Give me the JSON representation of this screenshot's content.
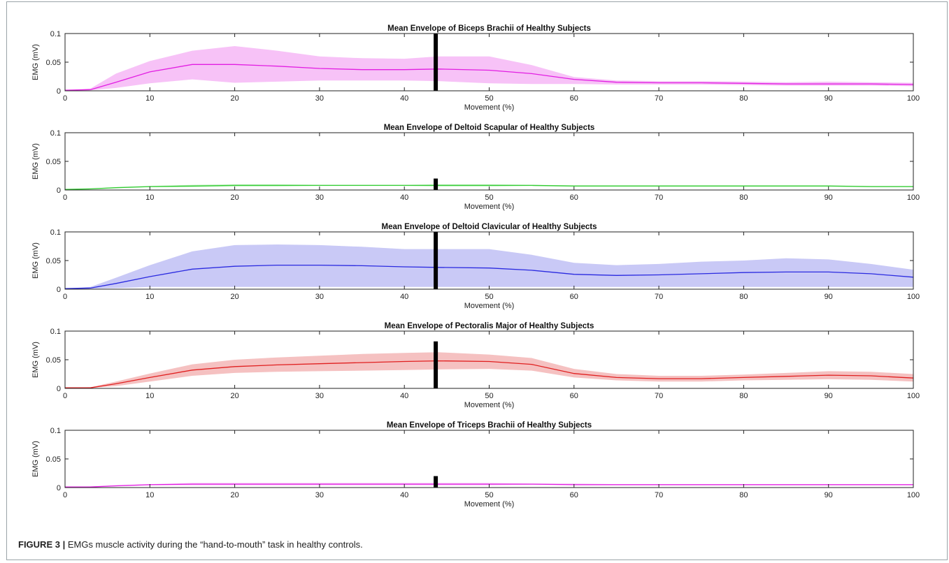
{
  "caption": {
    "label": "FIGURE 3 |",
    "text": "EMGs muscle activity during the “hand-to-mouth” task in healthy controls."
  },
  "chart_data": [
    {
      "type": "area",
      "title": "Mean Envelope of Biceps Brachii of Healthy Subjects",
      "xlabel": "Movement (%)",
      "ylabel": "EMG (mV)",
      "xlim": [
        0,
        100
      ],
      "ylim": [
        0,
        0.1
      ],
      "x_ticks": [
        0,
        10,
        20,
        30,
        40,
        50,
        60,
        70,
        80,
        90,
        100
      ],
      "y_ticks": [
        0,
        0.05,
        0.1
      ],
      "y_tick_labels": [
        "0",
        "0.05",
        "0.1"
      ],
      "color": "#e21ee2",
      "band_color": "#f7c2f7",
      "grid": false,
      "x": [
        0,
        3,
        6,
        10,
        15,
        20,
        25,
        30,
        35,
        40,
        44,
        50,
        55,
        60,
        65,
        70,
        75,
        80,
        85,
        90,
        95,
        100
      ],
      "mean": [
        0.001,
        0.002,
        0.015,
        0.033,
        0.046,
        0.046,
        0.043,
        0.039,
        0.037,
        0.037,
        0.038,
        0.036,
        0.03,
        0.02,
        0.015,
        0.014,
        0.014,
        0.013,
        0.012,
        0.012,
        0.012,
        0.011
      ],
      "upper": [
        0.001,
        0.004,
        0.03,
        0.052,
        0.07,
        0.078,
        0.07,
        0.06,
        0.057,
        0.056,
        0.06,
        0.06,
        0.045,
        0.024,
        0.018,
        0.017,
        0.017,
        0.016,
        0.015,
        0.016,
        0.015,
        0.014
      ],
      "lower": [
        0.001,
        0.001,
        0.005,
        0.013,
        0.02,
        0.014,
        0.016,
        0.018,
        0.018,
        0.018,
        0.017,
        0.013,
        0.012,
        0.012,
        0.011,
        0.011,
        0.011,
        0.01,
        0.009,
        0.009,
        0.009,
        0.008
      ],
      "marker_x": 43.7,
      "marker_range": [
        0,
        0.1
      ]
    },
    {
      "type": "area",
      "title": "Mean Envelope of Deltoid Scapular of Healthy Subjects",
      "xlabel": "Movement (%)",
      "ylabel": "EMG (mV)",
      "xlim": [
        0,
        100
      ],
      "ylim": [
        0,
        0.1
      ],
      "x_ticks": [
        0,
        10,
        20,
        30,
        40,
        50,
        60,
        70,
        80,
        90,
        100
      ],
      "y_ticks": [
        0,
        0.05,
        0.1
      ],
      "y_tick_labels": [
        "0",
        "0.05",
        "0.1"
      ],
      "color": "#33cc33",
      "band_color": "#c8f2c8",
      "grid": false,
      "x": [
        0,
        3,
        6,
        10,
        15,
        20,
        25,
        30,
        35,
        40,
        44,
        50,
        55,
        60,
        65,
        70,
        75,
        80,
        85,
        90,
        95,
        100
      ],
      "mean": [
        0.001,
        0.002,
        0.004,
        0.006,
        0.007,
        0.008,
        0.008,
        0.008,
        0.008,
        0.008,
        0.008,
        0.008,
        0.008,
        0.007,
        0.007,
        0.007,
        0.007,
        0.007,
        0.007,
        0.007,
        0.006,
        0.006
      ],
      "upper": [
        0.001,
        0.002,
        0.005,
        0.007,
        0.009,
        0.01,
        0.01,
        0.009,
        0.009,
        0.009,
        0.01,
        0.01,
        0.009,
        0.008,
        0.008,
        0.008,
        0.008,
        0.008,
        0.008,
        0.008,
        0.007,
        0.007
      ],
      "lower": [
        0.001,
        0.001,
        0.003,
        0.005,
        0.005,
        0.006,
        0.006,
        0.007,
        0.007,
        0.007,
        0.006,
        0.006,
        0.007,
        0.006,
        0.006,
        0.006,
        0.006,
        0.006,
        0.006,
        0.006,
        0.005,
        0.005
      ],
      "marker_x": 43.7,
      "marker_range": [
        0,
        0.02
      ]
    },
    {
      "type": "area",
      "title": "Mean Envelope of Deltoid Clavicular of Healthy Subjects",
      "xlabel": "Movement (%)",
      "ylabel": "EMG (mV)",
      "xlim": [
        0,
        100
      ],
      "ylim": [
        0,
        0.1
      ],
      "x_ticks": [
        0,
        10,
        20,
        30,
        40,
        50,
        60,
        70,
        80,
        90,
        100
      ],
      "y_ticks": [
        0,
        0.05,
        0.1
      ],
      "y_tick_labels": [
        "0",
        "0.05",
        "0.1"
      ],
      "color": "#2a2ae0",
      "band_color": "#c9c9f6",
      "grid": false,
      "x": [
        0,
        3,
        6,
        10,
        15,
        20,
        25,
        30,
        35,
        40,
        44,
        50,
        55,
        60,
        65,
        70,
        75,
        80,
        85,
        90,
        95,
        100
      ],
      "mean": [
        0.001,
        0.002,
        0.01,
        0.022,
        0.035,
        0.04,
        0.042,
        0.042,
        0.041,
        0.039,
        0.038,
        0.037,
        0.033,
        0.026,
        0.024,
        0.025,
        0.027,
        0.029,
        0.03,
        0.03,
        0.027,
        0.021
      ],
      "upper": [
        0.001,
        0.004,
        0.02,
        0.042,
        0.066,
        0.077,
        0.078,
        0.077,
        0.074,
        0.07,
        0.07,
        0.07,
        0.06,
        0.046,
        0.042,
        0.044,
        0.048,
        0.05,
        0.054,
        0.052,
        0.044,
        0.034
      ],
      "lower": [
        0.001,
        0.001,
        0.002,
        0.004,
        0.004,
        0.004,
        0.004,
        0.004,
        0.004,
        0.004,
        0.004,
        0.004,
        0.004,
        0.004,
        0.004,
        0.004,
        0.004,
        0.004,
        0.004,
        0.004,
        0.004,
        0.004
      ],
      "marker_x": 43.7,
      "marker_range": [
        0,
        0.1
      ]
    },
    {
      "type": "area",
      "title": "Mean Envelope of Pectoralis Major of Healthy Subjects",
      "xlabel": "Movement (%)",
      "ylabel": "EMG (mV)",
      "xlim": [
        0,
        100
      ],
      "ylim": [
        0,
        0.1
      ],
      "x_ticks": [
        0,
        10,
        20,
        30,
        40,
        50,
        60,
        70,
        80,
        90,
        100
      ],
      "y_ticks": [
        0,
        0.05,
        0.1
      ],
      "y_tick_labels": [
        "0",
        "0.05",
        "0.1"
      ],
      "color": "#e02020",
      "band_color": "#f5c1c1",
      "grid": false,
      "x": [
        0,
        3,
        6,
        10,
        15,
        20,
        25,
        30,
        35,
        40,
        44,
        50,
        55,
        60,
        65,
        70,
        75,
        80,
        85,
        90,
        95,
        100
      ],
      "mean": [
        0.001,
        0.001,
        0.008,
        0.019,
        0.032,
        0.038,
        0.041,
        0.043,
        0.045,
        0.047,
        0.048,
        0.047,
        0.042,
        0.026,
        0.019,
        0.017,
        0.017,
        0.019,
        0.021,
        0.023,
        0.022,
        0.018
      ],
      "upper": [
        0.001,
        0.002,
        0.012,
        0.026,
        0.042,
        0.05,
        0.054,
        0.057,
        0.06,
        0.062,
        0.063,
        0.059,
        0.053,
        0.034,
        0.025,
        0.022,
        0.022,
        0.024,
        0.027,
        0.03,
        0.029,
        0.025
      ],
      "lower": [
        0.001,
        0.001,
        0.004,
        0.012,
        0.022,
        0.027,
        0.029,
        0.03,
        0.031,
        0.032,
        0.033,
        0.034,
        0.031,
        0.019,
        0.014,
        0.012,
        0.012,
        0.014,
        0.015,
        0.016,
        0.015,
        0.012
      ],
      "marker_x": 43.7,
      "marker_range": [
        0,
        0.082
      ]
    },
    {
      "type": "area",
      "title": "Mean Envelope of Triceps Brachii of Healthy Subjects",
      "xlabel": "Movement (%)",
      "ylabel": "EMG (mV)",
      "xlim": [
        0,
        100
      ],
      "ylim": [
        0,
        0.1
      ],
      "x_ticks": [
        0,
        10,
        20,
        30,
        40,
        50,
        60,
        70,
        80,
        90,
        100
      ],
      "y_ticks": [
        0,
        0.05,
        0.1
      ],
      "y_tick_labels": [
        "0",
        "0.05",
        "0.1"
      ],
      "color": "#e21ee2",
      "band_color": "#f7c2f7",
      "grid": false,
      "x": [
        0,
        3,
        6,
        10,
        15,
        20,
        25,
        30,
        35,
        40,
        44,
        50,
        55,
        60,
        65,
        70,
        75,
        80,
        85,
        90,
        95,
        100
      ],
      "mean": [
        0.001,
        0.001,
        0.003,
        0.005,
        0.006,
        0.006,
        0.006,
        0.006,
        0.006,
        0.006,
        0.006,
        0.006,
        0.006,
        0.005,
        0.005,
        0.005,
        0.005,
        0.005,
        0.005,
        0.005,
        0.005,
        0.005
      ],
      "upper": [
        0.001,
        0.002,
        0.004,
        0.006,
        0.008,
        0.008,
        0.008,
        0.008,
        0.008,
        0.008,
        0.008,
        0.008,
        0.007,
        0.007,
        0.006,
        0.006,
        0.006,
        0.006,
        0.006,
        0.006,
        0.006,
        0.006
      ],
      "lower": [
        0.001,
        0.001,
        0.002,
        0.004,
        0.004,
        0.004,
        0.004,
        0.004,
        0.004,
        0.004,
        0.004,
        0.004,
        0.005,
        0.004,
        0.004,
        0.004,
        0.004,
        0.004,
        0.004,
        0.004,
        0.004,
        0.004
      ],
      "marker_x": 43.7,
      "marker_range": [
        0,
        0.02
      ]
    }
  ]
}
